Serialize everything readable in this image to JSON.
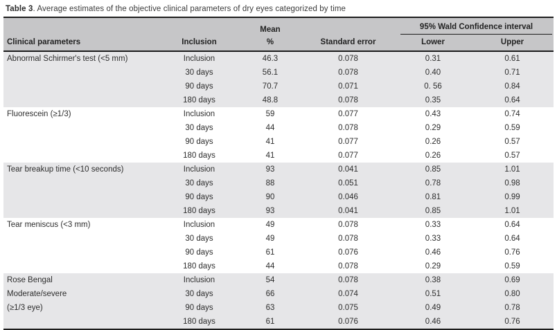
{
  "caption": {
    "label": "Table 3",
    "text": ". Average estimates of the objective clinical parameters of dry eyes categorized by time"
  },
  "colors": {
    "header_background": "#c6c6c8",
    "band_background": "#e6e6e8",
    "border": "#1c1c1c",
    "text": "#2d2d2d"
  },
  "table": {
    "header": {
      "col_parameters": "Clinical parameters",
      "col_inclusion": "Inclusion",
      "col_mean_line1": "Mean",
      "col_mean_line2": "%",
      "col_standard_error": "Standard error",
      "ci_group": "95% Wald Confidence interval",
      "col_lower": "Lower",
      "col_upper": "Upper"
    },
    "groups": [
      {
        "shaded": true,
        "parameter_lines": [
          "Abnormal Schirmer's test (<5 mm)",
          "",
          "",
          ""
        ],
        "rows": [
          {
            "time": "Inclusion",
            "mean": "46.3",
            "se": "0.078",
            "lower": "0.31",
            "upper": "0.61"
          },
          {
            "time": "30 days",
            "mean": "56.1",
            "se": "0.078",
            "lower": "0.40",
            "upper": "0.71"
          },
          {
            "time": "90 days",
            "mean": "70.7",
            "se": "0.071",
            "lower": "0. 56",
            "upper": "0.84"
          },
          {
            "time": "180 days",
            "mean": "48.8",
            "se": "0.078",
            "lower": "0.35",
            "upper": "0.64"
          }
        ]
      },
      {
        "shaded": false,
        "parameter_lines": [
          "Fluorescein (≥1/3)",
          "",
          "",
          ""
        ],
        "rows": [
          {
            "time": "Inclusion",
            "mean": "59",
            "se": "0.077",
            "lower": "0.43",
            "upper": "0.74"
          },
          {
            "time": "30 days",
            "mean": "44",
            "se": "0.078",
            "lower": "0.29",
            "upper": "0.59"
          },
          {
            "time": "90 days",
            "mean": "41",
            "se": "0.077",
            "lower": "0.26",
            "upper": "0.57"
          },
          {
            "time": "180 days",
            "mean": "41",
            "se": "0.077",
            "lower": "0.26",
            "upper": "0.57"
          }
        ]
      },
      {
        "shaded": true,
        "parameter_lines": [
          "Tear breakup time (<10 seconds)",
          "",
          "",
          ""
        ],
        "rows": [
          {
            "time": "Inclusion",
            "mean": "93",
            "se": "0.041",
            "lower": "0.85",
            "upper": "1.01"
          },
          {
            "time": "30 days",
            "mean": "88",
            "se": "0.051",
            "lower": "0.78",
            "upper": "0.98"
          },
          {
            "time": "90 days",
            "mean": "90",
            "se": "0.046",
            "lower": "0.81",
            "upper": "0.99"
          },
          {
            "time": "180 days",
            "mean": "93",
            "se": "0.041",
            "lower": "0.85",
            "upper": "1.01"
          }
        ]
      },
      {
        "shaded": false,
        "parameter_lines": [
          "Tear meniscus (<3 mm)",
          "",
          "",
          ""
        ],
        "rows": [
          {
            "time": "Inclusion",
            "mean": "49",
            "se": "0.078",
            "lower": "0.33",
            "upper": "0.64"
          },
          {
            "time": "30 days",
            "mean": "49",
            "se": "0.078",
            "lower": "0.33",
            "upper": "0.64"
          },
          {
            "time": "90 days",
            "mean": "61",
            "se": "0.076",
            "lower": "0.46",
            "upper": "0.76"
          },
          {
            "time": "180 days",
            "mean": "44",
            "se": "0.078",
            "lower": "0.29",
            "upper": "0.59"
          }
        ]
      },
      {
        "shaded": true,
        "parameter_lines": [
          "Rose Bengal",
          "Moderate/severe",
          "(≥1/3 eye)",
          ""
        ],
        "rows": [
          {
            "time": "Inclusion",
            "mean": "54",
            "se": "0.078",
            "lower": "0.38",
            "upper": "0.69"
          },
          {
            "time": "30 days",
            "mean": "66",
            "se": "0.074",
            "lower": "0.51",
            "upper": "0.80"
          },
          {
            "time": "90 days",
            "mean": "63",
            "se": "0.075",
            "lower": "0.49",
            "upper": "0.78"
          },
          {
            "time": "180 days",
            "mean": "61",
            "se": "0.076",
            "lower": "0.46",
            "upper": "0.76"
          }
        ]
      }
    ]
  }
}
